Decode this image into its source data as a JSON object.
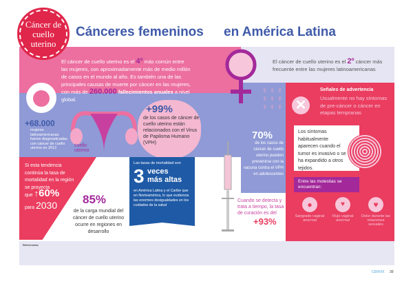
{
  "badge": "Cáncer de cuello uterino",
  "title": {
    "left": "Cánceres femeninos",
    "right": "en América Latina"
  },
  "intro": {
    "t1": "El cáncer de cuello uterino es el ",
    "rank": "4º",
    "t2": " más común entre las mujeres, con aproximadamente más de medio millón de casos en el mundo al año. Es también una de las principales causas de muerte por cáncer en las mujeres, con más de ",
    "deaths": "260.000",
    "t3": " fallecimientos anuales",
    "t4": " a nivel global."
  },
  "latam": {
    "t1": "El cáncer de cuello uterino es el ",
    "rank": "2º",
    "t2": " cáncer más frecuente entre las mujeres latinoamericanas"
  },
  "diagnosed": {
    "number": "+68.000",
    "text": "mujeres latinoamericanas fueron diagnosticadas con cáncer de cuello uterino en 2012"
  },
  "cervix_label": "cuello uterino",
  "hpv": {
    "number": "+99%",
    "text": "de los casos de cáncer de cuello uterino están relacionados con el Virus de Papiloma Humano (VPH)"
  },
  "vaccine": {
    "number": "70%",
    "text": "de los casos de cáncer de cuello uterino pueden prevenirse con la vacuna contra el VPH en adolescentes"
  },
  "trend": {
    "text": "Si esta tendencia continúa la tasa de mortalidad en la región se proyecta",
    "que": "que",
    "pct": "60%",
    "para": "para",
    "year": "2030"
  },
  "burden": {
    "number": "85%",
    "text": "de la carga mundial del cáncer de cuello uterino ocurre en regiones en desarrollo"
  },
  "mortality": {
    "intro": "Las tasas de mortalidad son",
    "big": "3",
    "veces": "veces",
    "altas": "más altas",
    "text": "en América Latina y el Caribe que en Norteamérica, lo que evidencia las enormes desigualdades en los cuidados de la salud"
  },
  "cure": {
    "text": "Cuando se detecta y trata a tiempo, la tasa de curación es del",
    "pct": "+93%"
  },
  "warning": {
    "title": "Señales de advertencia",
    "text": "Usualmente no hay síntomas de pre-cáncer o cáncer en etapas tempranas",
    "symptoms": "Los síntomas habitualmente aparecen cuando el tumor es invasivo o se ha expandido a otros tejidos.",
    "among": "Entre las molestias se encuentran:",
    "items": [
      "Sangrado vaginal anormal",
      "Flujo vaginal anormal",
      "Dolor durante las relaciones sexuales"
    ]
  },
  "footer": {
    "refs": "Referencias",
    "brand": "CERVIX",
    "page": "39"
  },
  "colors": {
    "blue": "#3f5aa8",
    "pink": "#ec6fa0",
    "red": "#ea3d5f",
    "purple": "#a3299a",
    "periwinkle": "#8f9ad6"
  }
}
